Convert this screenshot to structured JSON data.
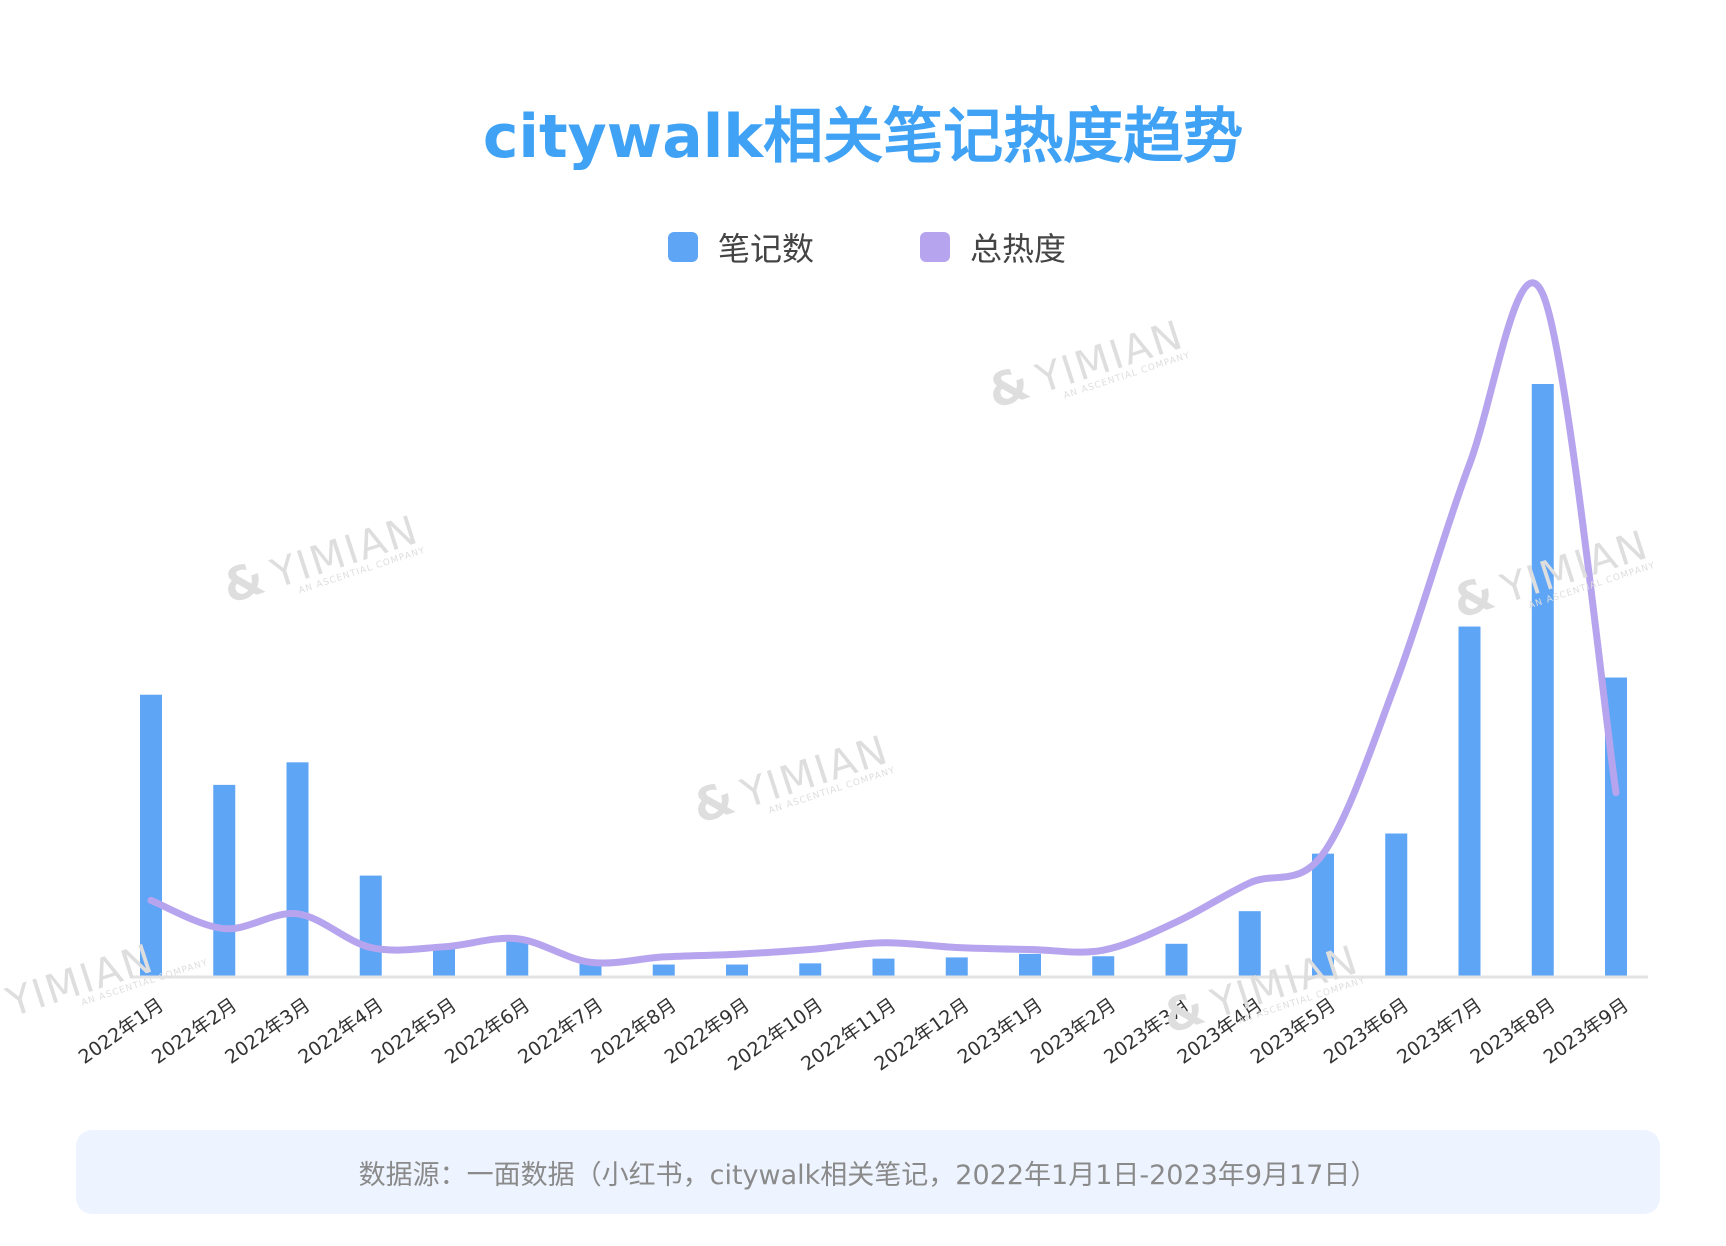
{
  "title": "citywalk相关笔记热度趋势",
  "legend": {
    "notes_label": "笔记数",
    "heat_label": "总热度"
  },
  "colors": {
    "notes": "#5ea5f6",
    "heat": "#b7a4ee",
    "title": "#3fa2f5",
    "axis": "#e3e3e3",
    "source_bg": "#eef4ff"
  },
  "source": "数据源：一面数据（小红书，citywalk相关笔记，2022年1月1日-2023年9月17日）",
  "watermark": {
    "logo": "&",
    "text": "YIMIAN",
    "sub": "AN ASCENTIAL COMPANY"
  },
  "chart_data": {
    "type": "bar",
    "categories": [
      "2022年1月",
      "2022年2月",
      "2022年3月",
      "2022年4月",
      "2022年5月",
      "2022年6月",
      "2022年7月",
      "2022年8月",
      "2022年9月",
      "2022年10月",
      "2022年11月",
      "2022年12月",
      "2023年1月",
      "2023年2月",
      "2023年3月",
      "2023年4月",
      "2023年5月",
      "2023年6月",
      "2023年7月",
      "2023年8月",
      "2023年9月"
    ],
    "series": [
      {
        "name": "笔记数",
        "type": "bar",
        "values": [
          47.6,
          32.4,
          36.2,
          17.1,
          5.2,
          6.5,
          2.8,
          2.1,
          2.1,
          2.3,
          3.1,
          3.3,
          3.9,
          3.5,
          5.6,
          11.1,
          20.8,
          24.2,
          59.1,
          100.0,
          50.5
        ]
      },
      {
        "name": "总热度",
        "type": "line",
        "values": [
          9.9,
          5.7,
          7.9,
          2.9,
          3.0,
          4.2,
          0.7,
          1.5,
          1.9,
          2.6,
          3.6,
          2.9,
          2.6,
          2.5,
          6.7,
          12.5,
          16.8,
          42.4,
          74.7,
          100.0,
          25.9
        ]
      }
    ],
    "xlabel": "",
    "ylabel": "",
    "grid": false,
    "legend_position": "top-center"
  }
}
